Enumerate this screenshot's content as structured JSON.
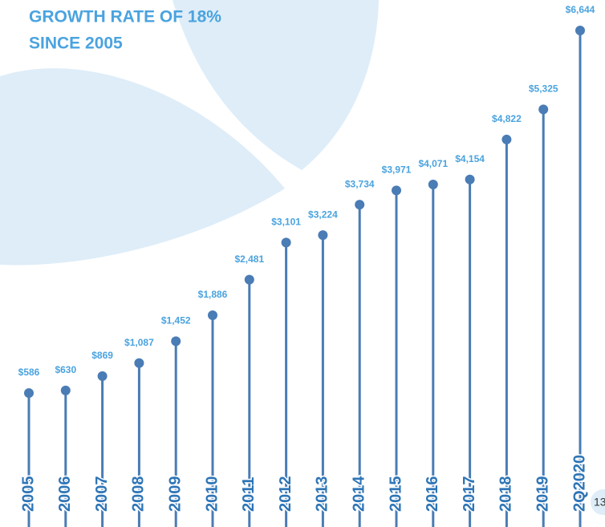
{
  "chart_data": {
    "type": "lollipop",
    "title": [
      "GROWTH RATE OF 18%",
      "SINCE 2005"
    ],
    "categories": [
      "2005",
      "2006",
      "2007",
      "2008",
      "2009",
      "2010",
      "2011",
      "2012",
      "2013",
      "2014",
      "2015",
      "2016",
      "2017",
      "2018",
      "2019",
      "2Q2020"
    ],
    "values": [
      586,
      630,
      869,
      1087,
      1452,
      1886,
      2481,
      3101,
      3224,
      3734,
      3971,
      4071,
      4154,
      4822,
      5325,
      6644
    ],
    "value_labels": [
      "$586",
      "$630",
      "$869",
      "$1,087",
      "$1,452",
      "$1,886",
      "$2,481",
      "$3,101",
      "$3,224",
      "$3,734",
      "$3,971",
      "$4,071",
      "$4,154",
      "$4,822",
      "$5,325",
      "$6,644"
    ],
    "color": "#4a7cb5",
    "label_color": "#4aa3df",
    "category_color": "#2e75b6"
  },
  "page_number": "13"
}
